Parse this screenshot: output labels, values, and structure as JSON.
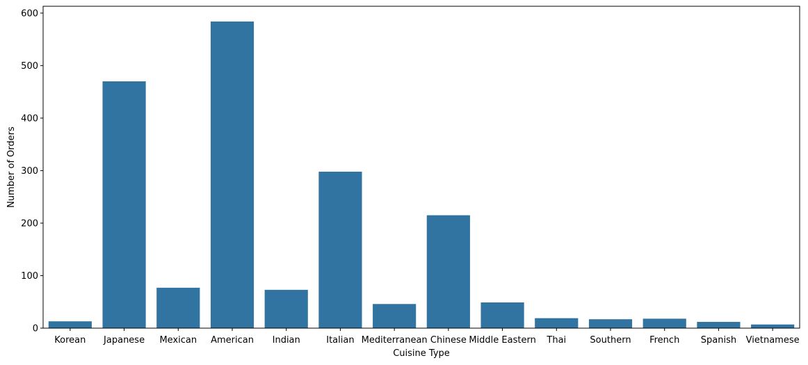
{
  "chart_data": {
    "type": "bar",
    "title": "",
    "xlabel": "Cuisine Type",
    "ylabel": "Number of Orders",
    "categories": [
      "Korean",
      "Japanese",
      "Mexican",
      "American",
      "Indian",
      "Italian",
      "Mediterranean",
      "Chinese",
      "Middle Eastern",
      "Thai",
      "Southern",
      "French",
      "Spanish",
      "Vietnamese"
    ],
    "values": [
      13,
      470,
      77,
      584,
      73,
      298,
      46,
      215,
      49,
      19,
      17,
      18,
      12,
      7
    ],
    "ylim": [
      0,
      613
    ],
    "yticks": [
      0,
      100,
      200,
      300,
      400,
      500,
      600
    ],
    "grid": false,
    "legend": "none",
    "bar_color": "#3274a1"
  }
}
